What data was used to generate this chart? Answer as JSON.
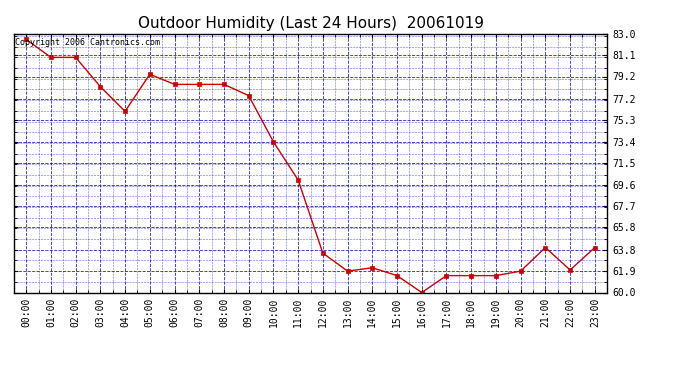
{
  "title": "Outdoor Humidity (Last 24 Hours)  20061019",
  "copyright": "Copyright 2006 Cantronics.com",
  "x_labels": [
    "00:00",
    "01:00",
    "02:00",
    "03:00",
    "04:00",
    "05:00",
    "06:00",
    "07:00",
    "08:00",
    "09:00",
    "10:00",
    "11:00",
    "12:00",
    "13:00",
    "14:00",
    "15:00",
    "16:00",
    "17:00",
    "18:00",
    "19:00",
    "20:00",
    "21:00",
    "22:00",
    "23:00"
  ],
  "y_values": [
    82.5,
    80.9,
    80.9,
    78.3,
    76.1,
    79.4,
    78.5,
    78.5,
    78.5,
    77.5,
    73.4,
    70.0,
    63.5,
    61.9,
    62.2,
    61.5,
    60.0,
    61.5,
    61.5,
    61.5,
    61.9,
    64.0,
    62.0,
    64.0
  ],
  "ylim_min": 60.0,
  "ylim_max": 83.0,
  "yticks": [
    60.0,
    61.9,
    63.8,
    65.8,
    67.7,
    69.6,
    71.5,
    73.4,
    75.3,
    77.2,
    79.2,
    81.1,
    83.0
  ],
  "line_color": "#cc0000",
  "marker_color": "#cc0000",
  "bg_color": "#ffffff",
  "grid_color": "#0000bb",
  "title_color": "#000000",
  "border_color": "#000000",
  "font_size_title": 11,
  "font_size_ticks": 7,
  "font_size_copyright": 6
}
